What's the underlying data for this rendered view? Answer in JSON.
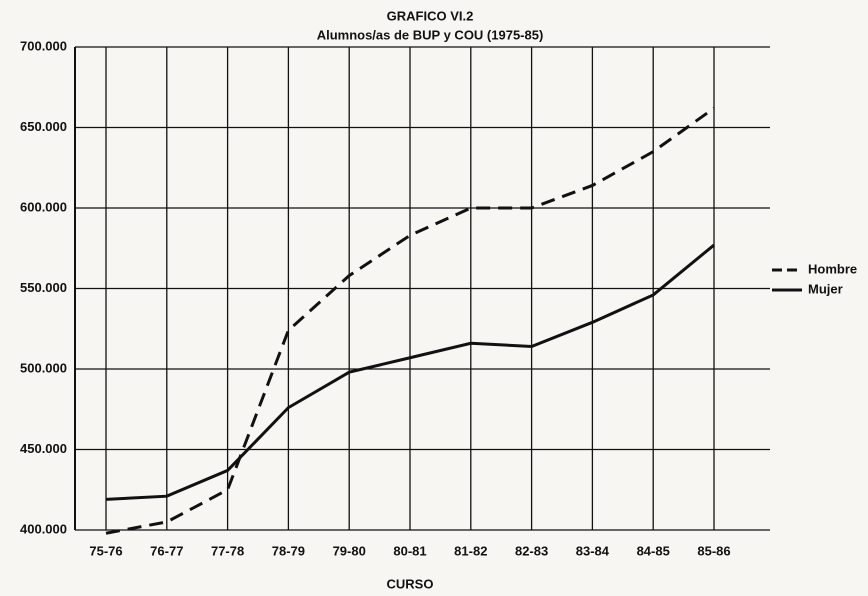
{
  "chart_data": {
    "type": "line",
    "title": "GRAFICO VI.2",
    "subtitle": "Alumnos/as de BUP y COU (1975-85)",
    "x_label": "CURSO",
    "categories": [
      "75-76",
      "76-77",
      "77-78",
      "78-79",
      "79-80",
      "80-81",
      "81-82",
      "82-83",
      "83-84",
      "84-85",
      "85-86"
    ],
    "series": [
      {
        "name": "Hombre",
        "color": "#111111",
        "dash": true,
        "values": [
          398000,
          405000,
          425000,
          524000,
          558000,
          583000,
          600000,
          600000,
          614000,
          635000,
          662000
        ]
      },
      {
        "name": "Mujer",
        "color": "#111111",
        "dash": false,
        "values": [
          419000,
          421000,
          437000,
          476000,
          498000,
          507000,
          516000,
          514000,
          529000,
          546000,
          577000
        ]
      }
    ],
    "ylim": [
      400000,
      700000
    ],
    "yticks": [
      {
        "value": 400000,
        "label": "400.000"
      },
      {
        "value": 450000,
        "label": "450.000"
      },
      {
        "value": 500000,
        "label": "500.000"
      },
      {
        "value": 550000,
        "label": "550.000"
      },
      {
        "value": 600000,
        "label": "600.000"
      },
      {
        "value": 650000,
        "label": "650.000"
      },
      {
        "value": 700000,
        "label": "700.000"
      }
    ],
    "grid": true,
    "legend": "right"
  }
}
